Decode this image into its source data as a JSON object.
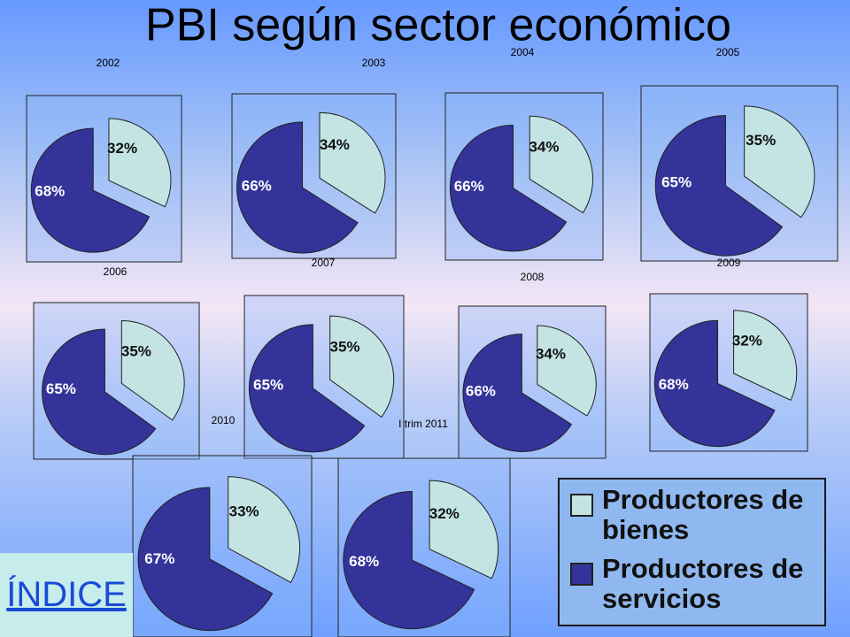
{
  "title": "PBI según sector económico",
  "legend": {
    "items": [
      {
        "label": "Productores de bienes",
        "color": "#c4e4e4"
      },
      {
        "label": "Productores de servicios",
        "color": "#333399"
      }
    ]
  },
  "index_link": "ÍNDICE",
  "chart_data": [
    {
      "type": "pie",
      "title": "2002",
      "values": [
        32,
        68
      ],
      "value_labels": [
        "32%",
        "68%"
      ]
    },
    {
      "type": "pie",
      "title": "2003",
      "values": [
        34,
        66
      ],
      "value_labels": [
        "34%",
        "66%"
      ]
    },
    {
      "type": "pie",
      "title": "2004",
      "values": [
        34,
        66
      ],
      "value_labels": [
        "34%",
        "66%"
      ]
    },
    {
      "type": "pie",
      "title": "2005",
      "values": [
        35,
        65
      ],
      "value_labels": [
        "35%",
        "65%"
      ]
    },
    {
      "type": "pie",
      "title": "2006",
      "values": [
        35,
        65
      ],
      "value_labels": [
        "35%",
        "65%"
      ]
    },
    {
      "type": "pie",
      "title": "2007",
      "values": [
        35,
        65
      ],
      "value_labels": [
        "35%",
        "65%"
      ]
    },
    {
      "type": "pie",
      "title": "2008",
      "values": [
        34,
        66
      ],
      "value_labels": [
        "34%",
        "66%"
      ]
    },
    {
      "type": "pie",
      "title": "2009",
      "values": [
        32,
        68
      ],
      "value_labels": [
        "32%",
        "68%"
      ]
    },
    {
      "type": "pie",
      "title": "2010",
      "values": [
        33,
        67
      ],
      "value_labels": [
        "33%",
        "67%"
      ]
    },
    {
      "type": "pie",
      "title": "I trim 2011",
      "values": [
        32,
        68
      ],
      "value_labels": [
        "32%",
        "68%"
      ]
    }
  ]
}
